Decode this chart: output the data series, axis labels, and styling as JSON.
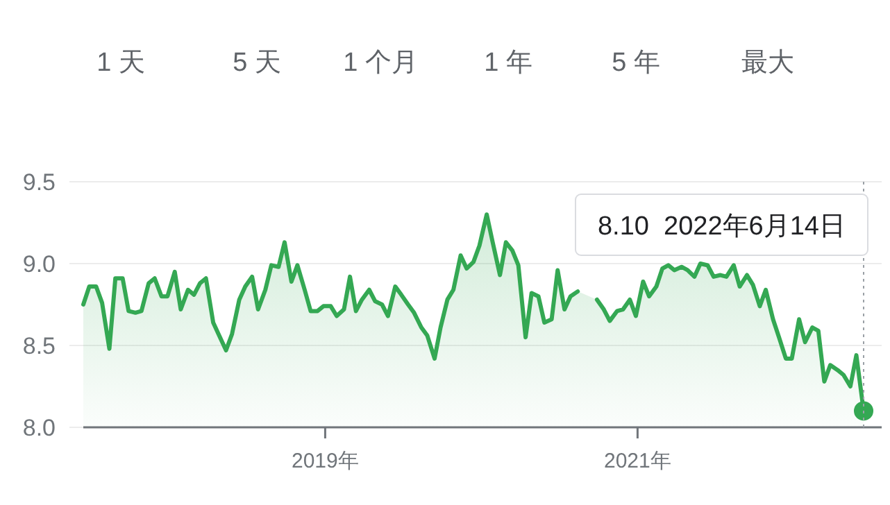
{
  "chart_data": {
    "type": "area",
    "color": "#34a853",
    "grid": "y",
    "marker": "none",
    "annotations": [
      "1 天",
      "5 天",
      "1 个月",
      "1 年",
      "5 年",
      "最大",
      "8.10  2022年6月14日"
    ],
    "ref_lines": [
      {
        "axis": "x",
        "value": "2022-06-14",
        "line_style": "dotted",
        "color": "#9aa0a6"
      }
    ],
    "xlim": [
      "2017-06-14",
      "2022-06-14"
    ],
    "xticks": [
      {
        "value": "2019-01-01",
        "label": "2019年"
      },
      {
        "value": "2021-01-01",
        "label": "2021年"
      }
    ],
    "ylim": [
      8.0,
      9.5
    ],
    "yticks": [
      {
        "value": 8,
        "label": "8.0"
      },
      8.5,
      {
        "value": 9,
        "label": "9.0"
      },
      9.5
    ],
    "x": [
      "2017-06-14",
      "2017-06-28",
      "2017-07-14",
      "2017-07-28",
      "2017-08-14",
      "2017-08-28",
      "2017-09-14",
      "2017-09-28",
      "2017-10-14",
      "2017-10-28",
      "2017-11-14",
      "2017-11-28",
      "2017-12-14",
      "2017-12-28",
      "2018-01-14",
      "2018-01-28",
      "2018-02-14",
      "2018-02-28",
      "2018-03-14",
      "2018-03-28",
      "2018-04-14",
      "2018-04-28",
      "2018-05-14",
      "2018-05-28",
      "2018-06-14",
      "2018-06-28",
      "2018-07-14",
      "2018-07-28",
      "2018-08-14",
      "2018-08-28",
      "2018-09-14",
      "2018-09-28",
      "2018-10-14",
      "2018-10-28",
      "2018-11-14",
      "2018-11-28",
      "2018-12-14",
      "2018-12-28",
      "2019-01-14",
      "2019-01-28",
      "2019-02-14",
      "2019-02-28",
      "2019-03-14",
      "2019-03-28",
      "2019-04-14",
      "2019-04-28",
      "2019-05-14",
      "2019-05-28",
      "2019-06-14",
      "2019-06-28",
      "2019-07-14",
      "2019-07-28",
      "2019-08-14",
      "2019-08-28",
      "2019-09-14",
      "2019-09-28",
      "2019-10-14",
      "2019-10-28",
      "2019-11-14",
      "2019-11-28",
      "2019-12-14",
      "2019-12-28",
      "2020-01-14",
      "2020-01-28",
      "2020-02-14",
      "2020-02-28",
      "2020-03-14",
      "2020-03-28",
      "2020-04-14",
      "2020-04-28",
      "2020-05-14",
      "2020-05-28",
      "2020-06-14",
      "2020-06-28",
      "2020-07-14",
      "2020-07-28",
      "2020-08-14",
      "2020-08-28",
      "2020-09-14",
      "2020-09-28",
      "2020-10-14",
      "2020-10-28",
      "2020-11-14",
      "2020-11-28",
      "2020-12-14",
      "2020-12-28",
      "2021-01-14",
      "2021-01-28",
      "2021-02-14",
      "2021-02-28",
      "2021-03-14",
      "2021-03-28",
      "2021-04-14",
      "2021-04-28",
      "2021-05-14",
      "2021-05-28",
      "2021-06-14",
      "2021-06-28",
      "2021-07-14",
      "2021-07-28",
      "2021-08-14",
      "2021-08-28",
      "2021-09-14",
      "2021-09-28",
      "2021-10-14",
      "2021-10-28",
      "2021-11-14",
      "2021-11-28",
      "2021-12-14",
      "2021-12-28",
      "2022-01-14",
      "2022-01-28",
      "2022-02-14",
      "2022-02-28",
      "2022-03-14",
      "2022-03-28",
      "2022-04-14",
      "2022-04-28",
      "2022-05-14",
      "2022-05-28",
      "2022-06-14"
    ],
    "values": [
      8.75,
      8.86,
      8.86,
      8.76,
      8.48,
      8.91,
      8.91,
      8.71,
      8.7,
      8.71,
      8.88,
      8.91,
      8.8,
      8.8,
      8.95,
      8.72,
      8.84,
      8.81,
      8.88,
      8.91,
      8.64,
      8.56,
      8.47,
      8.57,
      8.78,
      8.86,
      8.92,
      8.72,
      8.84,
      8.99,
      8.98,
      9.13,
      8.89,
      8.99,
      8.84,
      8.71,
      8.71,
      8.74,
      8.74,
      8.68,
      8.72,
      8.92,
      8.71,
      8.78,
      8.84,
      8.77,
      8.75,
      8.68,
      8.86,
      8.81,
      8.75,
      8.7,
      8.61,
      8.56,
      8.42,
      8.61,
      8.78,
      8.84,
      9.05,
      8.97,
      9.01,
      9.11,
      9.3,
      9.13,
      8.93,
      9.13,
      9.08,
      8.99,
      8.55,
      8.82,
      8.8,
      8.64,
      8.66,
      8.96,
      8.72,
      8.8,
      8.83,
      null,
      null,
      8.78,
      8.72,
      8.65,
      8.71,
      8.72,
      8.78,
      8.68,
      8.89,
      8.8,
      8.86,
      8.97,
      8.99,
      8.96,
      8.98,
      8.96,
      8.92,
      9.0,
      8.99,
      8.92,
      8.93,
      8.92,
      8.99,
      8.86,
      8.93,
      8.87,
      8.74,
      8.84,
      8.66,
      8.55,
      8.42,
      8.42,
      8.66,
      8.52,
      8.61,
      8.59,
      8.28,
      8.38,
      8.35,
      8.32,
      8.25,
      8.44,
      8.1
    ]
  }
}
